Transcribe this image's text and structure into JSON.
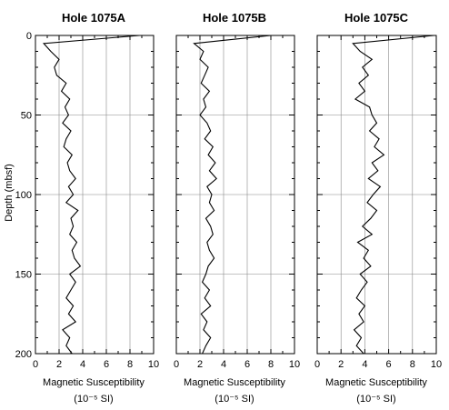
{
  "chart_data": [
    {
      "type": "line",
      "title": "Hole 1075A",
      "ylabel": "Depth  (mbsf)",
      "xlabel_line1": "Magnetic Susceptibility",
      "xlabel_line2": "(10⁻⁵ SI)",
      "xlim": [
        0,
        10
      ],
      "ylim": [
        0,
        200
      ],
      "y_inverted": true,
      "x_ticks": [
        "0",
        "2",
        "4",
        "6",
        "8",
        "10"
      ],
      "y_ticks": [
        "0",
        "50",
        "100",
        "150",
        "200"
      ],
      "grid": true,
      "series": [
        {
          "x": [
            8.8,
            0.7,
            1.3,
            2.0,
            1.6,
            1.8,
            2.6,
            2.2,
            2.9,
            2.5,
            2.8,
            2.3,
            3.0,
            2.6,
            2.4,
            3.1,
            2.7,
            2.9,
            3.4,
            2.8,
            3.2,
            2.6,
            3.6,
            3.0,
            3.2,
            2.9,
            3.5,
            3.1,
            3.3,
            3.8,
            2.9,
            3.4,
            3.0,
            2.6,
            3.2,
            2.8,
            3.4,
            2.3,
            2.9,
            2.6,
            3.1
          ],
          "y": [
            0,
            5,
            10,
            15,
            20,
            25,
            30,
            35,
            40,
            45,
            50,
            55,
            60,
            65,
            70,
            75,
            80,
            85,
            90,
            95,
            100,
            105,
            110,
            115,
            120,
            125,
            130,
            135,
            140,
            145,
            150,
            155,
            160,
            165,
            170,
            175,
            180,
            185,
            190,
            195,
            200
          ]
        }
      ]
    },
    {
      "type": "line",
      "title": "Hole 1075B",
      "ylabel": "",
      "xlabel_line1": "Magnetic Susceptibility",
      "xlabel_line2": "(10⁻⁵ SI)",
      "xlim": [
        0,
        10
      ],
      "ylim": [
        0,
        200
      ],
      "y_inverted": true,
      "x_ticks": [
        "0",
        "2",
        "4",
        "6",
        "8",
        "10"
      ],
      "y_ticks": [
        "0",
        "50",
        "100",
        "150",
        "200"
      ],
      "grid": true,
      "series": [
        {
          "x": [
            8.0,
            1.5,
            2.3,
            2.0,
            2.7,
            2.4,
            2.1,
            2.8,
            2.3,
            2.5,
            2.0,
            2.6,
            2.9,
            2.4,
            3.1,
            2.7,
            3.3,
            2.8,
            3.4,
            2.6,
            3.0,
            2.8,
            3.2,
            2.5,
            2.9,
            3.1,
            2.6,
            2.8,
            3.2,
            2.7,
            2.5,
            2.2,
            2.8,
            2.4,
            2.9,
            2.1,
            2.6,
            2.3,
            2.9,
            2.5,
            2.2
          ],
          "y": [
            0,
            5,
            10,
            15,
            20,
            25,
            30,
            35,
            40,
            45,
            50,
            55,
            60,
            65,
            70,
            75,
            80,
            85,
            90,
            95,
            100,
            105,
            110,
            115,
            120,
            125,
            130,
            135,
            140,
            145,
            150,
            155,
            160,
            165,
            170,
            175,
            180,
            185,
            190,
            195,
            200
          ]
        }
      ]
    },
    {
      "type": "line",
      "title": "Hole 1075C",
      "ylabel": "",
      "xlabel_line1": "Magnetic Susceptibility",
      "xlabel_line2": "(10⁻⁵ SI)",
      "xlim": [
        0,
        10
      ],
      "ylim": [
        0,
        200
      ],
      "y_inverted": true,
      "x_ticks": [
        "0",
        "2",
        "4",
        "6",
        "8",
        "10"
      ],
      "y_ticks": [
        "0",
        "50",
        "100",
        "150",
        "200"
      ],
      "grid": true,
      "series": [
        {
          "x": [
            9.8,
            3.0,
            3.6,
            4.6,
            3.8,
            4.3,
            3.5,
            4.0,
            3.2,
            4.4,
            4.6,
            5.0,
            4.4,
            5.2,
            4.8,
            5.6,
            4.6,
            5.1,
            4.3,
            5.3,
            4.7,
            4.2,
            5.0,
            4.5,
            3.8,
            4.6,
            3.4,
            4.3,
            3.9,
            4.5,
            3.6,
            4.2,
            3.7,
            3.3,
            4.0,
            3.5,
            3.9,
            3.1,
            3.7,
            3.3,
            3.9
          ],
          "y": [
            0,
            5,
            10,
            15,
            20,
            25,
            30,
            35,
            40,
            45,
            50,
            55,
            60,
            65,
            70,
            75,
            80,
            85,
            90,
            95,
            100,
            105,
            110,
            115,
            120,
            125,
            130,
            135,
            140,
            145,
            150,
            155,
            160,
            165,
            170,
            175,
            180,
            185,
            190,
            195,
            200
          ]
        }
      ]
    }
  ]
}
